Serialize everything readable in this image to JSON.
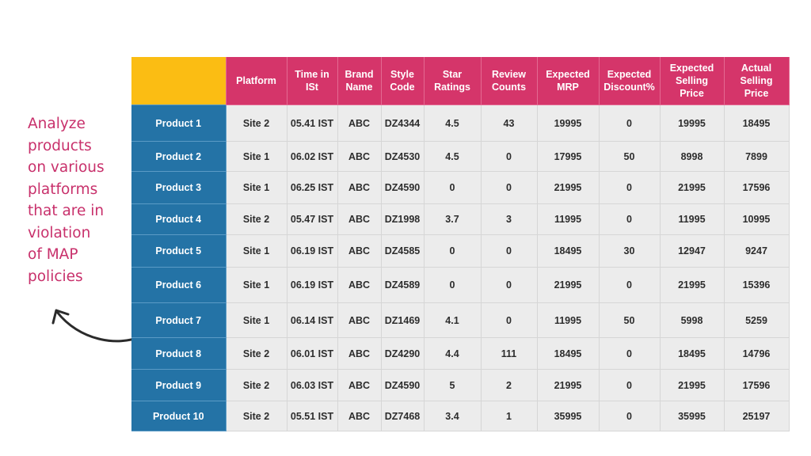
{
  "annotation": {
    "lines": [
      "Analyze",
      "products",
      "on various",
      "platforms",
      "that are in",
      "violation",
      "of MAP",
      "policies"
    ]
  },
  "colors": {
    "corner": "#fbbd13",
    "header": "#d5356a",
    "row_header": "#2473a6",
    "cell": "#ececec",
    "annotation_text": "#c8306b"
  },
  "table": {
    "headers": [
      [
        "Platform"
      ],
      [
        "Time in",
        "ISt"
      ],
      [
        "Brand",
        "Name"
      ],
      [
        "Style",
        "Code"
      ],
      [
        "Star",
        "Ratings"
      ],
      [
        "Review",
        "Counts"
      ],
      [
        "Expected",
        "MRP"
      ],
      [
        "Expected",
        "Discount%"
      ],
      [
        "Expected",
        "Selling",
        "Price"
      ],
      [
        "Actual",
        "Selling",
        "Price"
      ]
    ],
    "rows": [
      {
        "product": "Product 1",
        "cells": [
          "Site 2",
          "05.41 IST",
          "ABC",
          "DZ4344",
          "4.5",
          "43",
          "19995",
          "0",
          "19995",
          "18495"
        ]
      },
      {
        "product": "Product 2",
        "cells": [
          "Site 1",
          "06.02 IST",
          "ABC",
          "DZ4530",
          "4.5",
          "0",
          "17995",
          "50",
          "8998",
          "7899"
        ]
      },
      {
        "product": "Product 3",
        "cells": [
          "Site 1",
          "06.25 IST",
          "ABC",
          "DZ4590",
          "0",
          "0",
          "21995",
          "0",
          "21995",
          "17596"
        ]
      },
      {
        "product": "Product 4",
        "cells": [
          "Site 2",
          "05.47 IST",
          "ABC",
          "DZ1998",
          "3.7",
          "3",
          "11995",
          "0",
          "11995",
          "10995"
        ]
      },
      {
        "product": "Product 5",
        "cells": [
          "Site 1",
          "06.19 IST",
          "ABC",
          "DZ4585",
          "0",
          "0",
          "18495",
          "30",
          "12947",
          "9247"
        ]
      },
      {
        "product": "Product 6",
        "cells": [
          "Site 1",
          "06.19 IST",
          "ABC",
          "DZ4589",
          "0",
          "0",
          "21995",
          "0",
          "21995",
          "15396"
        ]
      },
      {
        "product": "Product 7",
        "cells": [
          "Site 1",
          "06.14 IST",
          "ABC",
          "DZ1469",
          "4.1",
          "0",
          "11995",
          "50",
          "5998",
          "5259"
        ]
      },
      {
        "product": "Product 8",
        "cells": [
          "Site 2",
          "06.01 IST",
          "ABC",
          "DZ4290",
          "4.4",
          "111",
          "18495",
          "0",
          "18495",
          "14796"
        ]
      },
      {
        "product": "Product 9",
        "cells": [
          "Site 2",
          "06.03 IST",
          "ABC",
          "DZ4590",
          "5",
          "2",
          "21995",
          "0",
          "21995",
          "17596"
        ]
      },
      {
        "product": "Product 10",
        "cells": [
          "Site 2",
          "05.51 IST",
          "ABC",
          "DZ7468",
          "3.4",
          "1",
          "35995",
          "0",
          "35995",
          "25197"
        ]
      }
    ]
  }
}
